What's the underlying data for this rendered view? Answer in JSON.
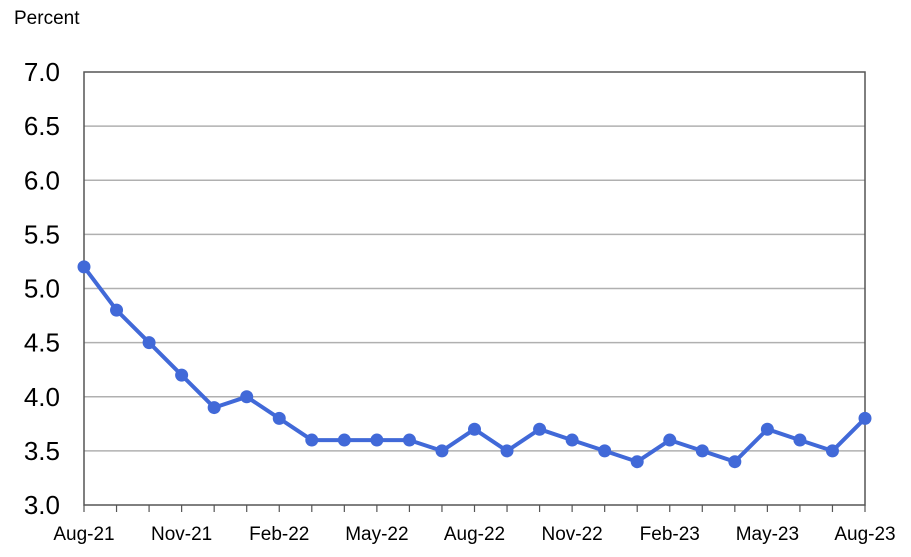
{
  "chart_data": {
    "type": "line",
    "ylabel": "Percent",
    "ylim": [
      3.0,
      7.0
    ],
    "y_ticks": [
      "7.0",
      "6.5",
      "6.0",
      "5.5",
      "5.0",
      "4.5",
      "4.0",
      "3.5",
      "3.0"
    ],
    "x_tick_labels": [
      "Aug-21",
      "Nov-21",
      "Feb-22",
      "May-22",
      "Aug-22",
      "Nov-22",
      "Feb-23",
      "May-23",
      "Aug-23"
    ],
    "categories": [
      "Aug-21",
      "Sep-21",
      "Oct-21",
      "Nov-21",
      "Dec-21",
      "Jan-22",
      "Feb-22",
      "Mar-22",
      "Apr-22",
      "May-22",
      "Jun-22",
      "Jul-22",
      "Aug-22",
      "Sep-22",
      "Oct-22",
      "Nov-22",
      "Dec-22",
      "Jan-23",
      "Feb-23",
      "Mar-23",
      "Apr-23",
      "May-23",
      "Jun-23",
      "Jul-23",
      "Aug-23"
    ],
    "series": [
      {
        "values": [
          5.2,
          4.8,
          4.5,
          4.2,
          3.9,
          4.0,
          3.8,
          3.6,
          3.6,
          3.6,
          3.6,
          3.5,
          3.7,
          3.5,
          3.7,
          3.6,
          3.5,
          3.4,
          3.6,
          3.5,
          3.4,
          3.7,
          3.6,
          3.5,
          3.8
        ],
        "color": "#4169d8"
      }
    ],
    "grid": true,
    "grid_color": "#b0b0b0",
    "legend": "none"
  }
}
